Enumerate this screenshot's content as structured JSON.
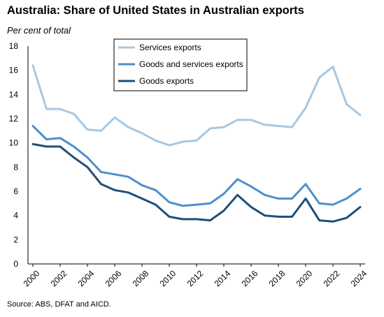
{
  "title": "Australia: Share of United States in Australian exports",
  "unit_label": "Per cent of total",
  "source": "Source: ABS, DFAT and AICD.",
  "chart_data": {
    "type": "line",
    "x": [
      2000,
      2001,
      2002,
      2003,
      2004,
      2005,
      2006,
      2007,
      2008,
      2009,
      2010,
      2011,
      2012,
      2013,
      2014,
      2015,
      2016,
      2017,
      2018,
      2019,
      2020,
      2021,
      2022,
      2023,
      2024
    ],
    "xticks": [
      "2000",
      "2002",
      "2004",
      "2006",
      "2008",
      "2010",
      "2012",
      "2014",
      "2016",
      "2018",
      "2020",
      "2022",
      "2024"
    ],
    "yticks": [
      "0",
      "2",
      "4",
      "6",
      "8",
      "10",
      "12",
      "14",
      "16",
      "18"
    ],
    "ylim": [
      0,
      18
    ],
    "grid": false,
    "legend_position": "top-center",
    "series": [
      {
        "name": "Services exports",
        "color": "#a5c8e4",
        "values": [
          16.4,
          12.8,
          12.8,
          12.4,
          11.1,
          11.0,
          12.1,
          11.3,
          10.8,
          10.2,
          9.8,
          10.1,
          10.2,
          11.2,
          11.3,
          11.9,
          11.9,
          11.5,
          11.4,
          11.3,
          12.9,
          15.4,
          16.3,
          13.2,
          12.3
        ]
      },
      {
        "name": "Goods and services exports",
        "color": "#4e8fcb",
        "values": [
          11.4,
          10.3,
          10.4,
          9.7,
          8.8,
          7.6,
          7.4,
          7.2,
          6.5,
          6.1,
          5.1,
          4.8,
          4.9,
          5.0,
          5.8,
          7.0,
          6.4,
          5.7,
          5.4,
          5.4,
          6.6,
          5.0,
          4.9,
          5.4,
          6.2
        ]
      },
      {
        "name": "Goods exports",
        "color": "#1f4e79",
        "values": [
          9.9,
          9.7,
          9.7,
          8.8,
          8.0,
          6.6,
          6.1,
          5.9,
          5.4,
          4.9,
          3.9,
          3.7,
          3.7,
          3.6,
          4.4,
          5.7,
          4.7,
          4.0,
          3.9,
          3.9,
          5.4,
          3.6,
          3.5,
          3.8,
          4.7
        ]
      }
    ]
  }
}
